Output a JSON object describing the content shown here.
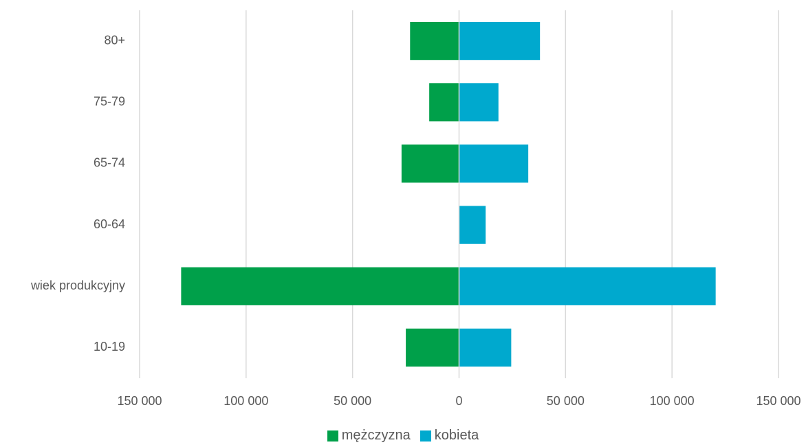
{
  "chart_data": {
    "type": "bar",
    "orientation": "horizontal",
    "layout": "population-pyramid",
    "categories": [
      "80+",
      "75-79",
      "65-74",
      "60-64",
      "wiek produkcyjny",
      "10-19"
    ],
    "series": [
      {
        "name": "mężczyzna",
        "color": "#00A04A",
        "values": [
          -23000,
          -14000,
          -27000,
          0,
          -130500,
          -25000
        ]
      },
      {
        "name": "kobieta",
        "color": "#00A9CE",
        "values": [
          38000,
          18500,
          32500,
          12500,
          120500,
          24500
        ]
      }
    ],
    "xlim": [
      -150000,
      150000
    ],
    "x_ticks": [
      -150000,
      -100000,
      -50000,
      0,
      50000,
      100000,
      150000
    ],
    "x_tick_labels": [
      "150 000",
      "100 000",
      "50 000",
      "0",
      "50 000",
      "100 000",
      "150 000"
    ],
    "gridlines": "vertical",
    "gridline_color": "#D9D9D9",
    "legend_position": "bottom",
    "title": "",
    "xlabel": "",
    "ylabel": ""
  }
}
